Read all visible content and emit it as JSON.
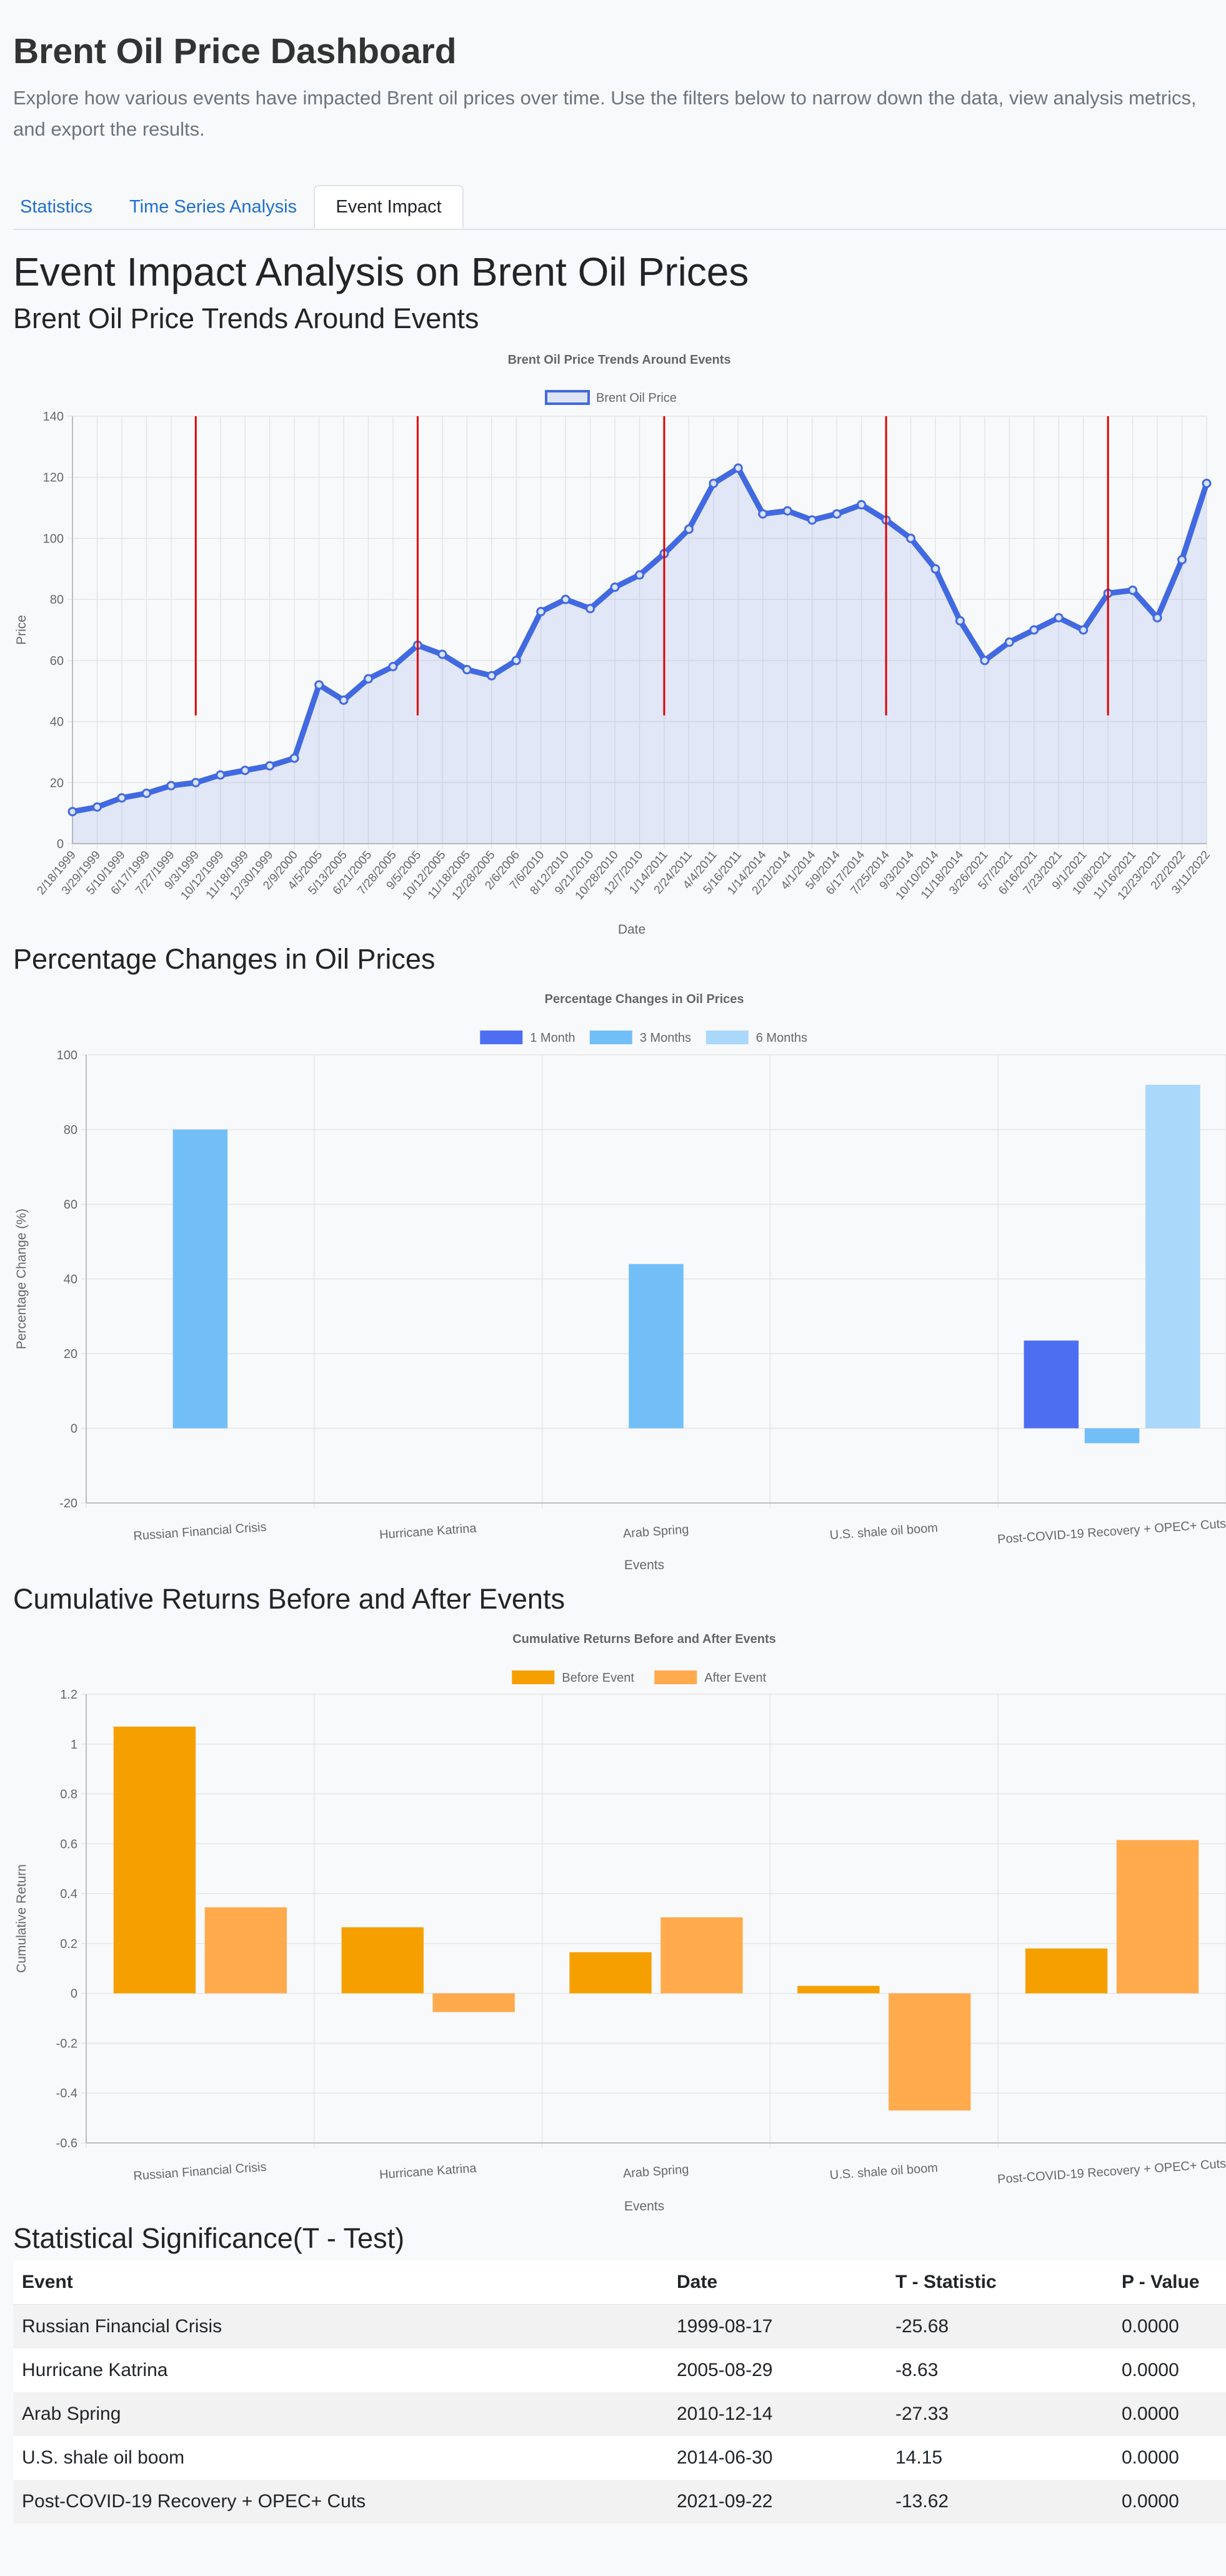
{
  "header": {
    "title": "Brent Oil Price Dashboard",
    "description": "Explore how various events have impacted Brent oil prices over time. Use the filters below to narrow down the data, view analysis metrics, and export the results."
  },
  "tabs": [
    {
      "label": "Statistics",
      "active": false
    },
    {
      "label": "Time Series Analysis",
      "active": false
    },
    {
      "label": "Event Impact",
      "active": true
    }
  ],
  "main": {
    "title": "Event Impact Analysis on Brent Oil Prices",
    "sections": {
      "trend": "Brent Oil Price Trends Around Events",
      "pct": "Percentage Changes in Oil Prices",
      "cum": "Cumulative Returns Before and After Events",
      "ttest": "Statistical Significance(T - Test)"
    }
  },
  "colors": {
    "line": "#4169e1",
    "event_line": "#e00000",
    "pct_1m": "#4e6ef2",
    "pct_3m": "#72bff8",
    "pct_6m": "#a9d8fb",
    "before": "#f5a000",
    "after": "#ffaa4d"
  },
  "chart_data": [
    {
      "type": "line",
      "title": "Brent Oil Price Trends Around Events",
      "xlabel": "Date",
      "ylabel": "Price",
      "ylim": [
        0,
        140
      ],
      "yticks": [
        0,
        20,
        40,
        60,
        80,
        100,
        120,
        140
      ],
      "grid": true,
      "legend_position": "top",
      "series": [
        {
          "name": "Brent Oil Price",
          "x": [
            "2/18/1999",
            "3/29/1999",
            "5/10/1999",
            "6/17/1999",
            "7/27/1999",
            "9/3/1999",
            "10/12/1999",
            "11/18/1999",
            "12/30/1999",
            "2/9/2000",
            "4/5/2005",
            "5/13/2005",
            "6/21/2005",
            "7/28/2005",
            "9/5/2005",
            "10/12/2005",
            "11/18/2005",
            "12/28/2005",
            "2/6/2006",
            "7/6/2010",
            "8/12/2010",
            "9/21/2010",
            "10/28/2010",
            "12/7/2010",
            "1/14/2011",
            "2/24/2011",
            "4/4/2011",
            "5/16/2011",
            "1/14/2014",
            "2/21/2014",
            "4/1/2014",
            "5/9/2014",
            "6/17/2014",
            "7/25/2014",
            "9/3/2014",
            "10/10/2014",
            "11/18/2014",
            "3/26/2021",
            "5/7/2021",
            "6/16/2021",
            "7/23/2021",
            "9/1/2021",
            "10/8/2021",
            "11/16/2021",
            "12/23/2021",
            "2/2/2022",
            "3/11/2022"
          ],
          "values": [
            10.5,
            12,
            15,
            16.5,
            19,
            20,
            22.5,
            24,
            25.5,
            28,
            52,
            47,
            54,
            58,
            65,
            62,
            57,
            55,
            60,
            76,
            80,
            77,
            84,
            88,
            95,
            103,
            118,
            123,
            108,
            109,
            106,
            108,
            111,
            106,
            100,
            90,
            73,
            60,
            66,
            70,
            74,
            70,
            82,
            83,
            74,
            93,
            118
          ]
        }
      ],
      "event_markers": [
        {
          "label": "Russian Financial Crisis",
          "date": "1999-08-17",
          "y_range": [
            42,
            140
          ]
        },
        {
          "label": "Hurricane Katrina",
          "date": "2005-08-29",
          "y_range": [
            42,
            140
          ]
        },
        {
          "label": "Arab Spring",
          "date": "2010-12-14",
          "y_range": [
            42,
            140
          ]
        },
        {
          "label": "U.S. shale oil boom",
          "date": "2014-06-30",
          "y_range": [
            42,
            140
          ]
        },
        {
          "label": "Post-COVID-19 Recovery + OPEC+ Cuts",
          "date": "2021-09-22",
          "y_range": [
            42,
            140
          ]
        }
      ]
    },
    {
      "type": "bar",
      "title": "Percentage Changes in Oil Prices",
      "xlabel": "Events",
      "ylabel": "Percentage Change (%)",
      "ylim": [
        -20,
        100
      ],
      "yticks": [
        -20,
        0,
        20,
        40,
        60,
        80,
        100
      ],
      "grid": true,
      "legend_position": "top",
      "categories": [
        "Russian Financial Crisis",
        "Hurricane Katrina",
        "Arab Spring",
        "U.S. shale oil boom",
        "Post-COVID-19 Recovery + OPEC+ Cuts"
      ],
      "series": [
        {
          "name": "1 Month",
          "values": [
            0,
            0,
            0,
            0,
            23.5
          ]
        },
        {
          "name": "3 Months",
          "values": [
            80,
            0,
            44,
            0,
            -4
          ]
        },
        {
          "name": "6 Months",
          "values": [
            0,
            0,
            0,
            0,
            92
          ]
        }
      ]
    },
    {
      "type": "bar",
      "title": "Cumulative Returns Before and After Events",
      "xlabel": "Events",
      "ylabel": "Cumulative Return",
      "ylim": [
        -0.6,
        1.2
      ],
      "yticks": [
        -0.6,
        -0.4,
        -0.2,
        0,
        0.2,
        0.4,
        0.6,
        0.8,
        1.0,
        1.2
      ],
      "grid": true,
      "legend_position": "top",
      "categories": [
        "Russian Financial Crisis",
        "Hurricane Katrina",
        "Arab Spring",
        "U.S. shale oil boom",
        "Post-COVID-19 Recovery + OPEC+ Cuts"
      ],
      "series": [
        {
          "name": "Before Event",
          "values": [
            1.07,
            0.265,
            0.165,
            0.03,
            0.18
          ]
        },
        {
          "name": "After Event",
          "values": [
            0.345,
            -0.075,
            0.305,
            -0.47,
            0.615
          ]
        }
      ]
    },
    {
      "type": "table",
      "columns": [
        "Event",
        "Date",
        "T - Statistic",
        "P - Value"
      ],
      "rows": [
        [
          "Russian Financial Crisis",
          "1999-08-17",
          "-25.68",
          "0.0000"
        ],
        [
          "Hurricane Katrina",
          "2005-08-29",
          "-8.63",
          "0.0000"
        ],
        [
          "Arab Spring",
          "2010-12-14",
          "-27.33",
          "0.0000"
        ],
        [
          "U.S. shale oil boom",
          "2014-06-30",
          "14.15",
          "0.0000"
        ],
        [
          "Post-COVID-19 Recovery + OPEC+ Cuts",
          "2021-09-22",
          "-13.62",
          "0.0000"
        ]
      ]
    }
  ]
}
